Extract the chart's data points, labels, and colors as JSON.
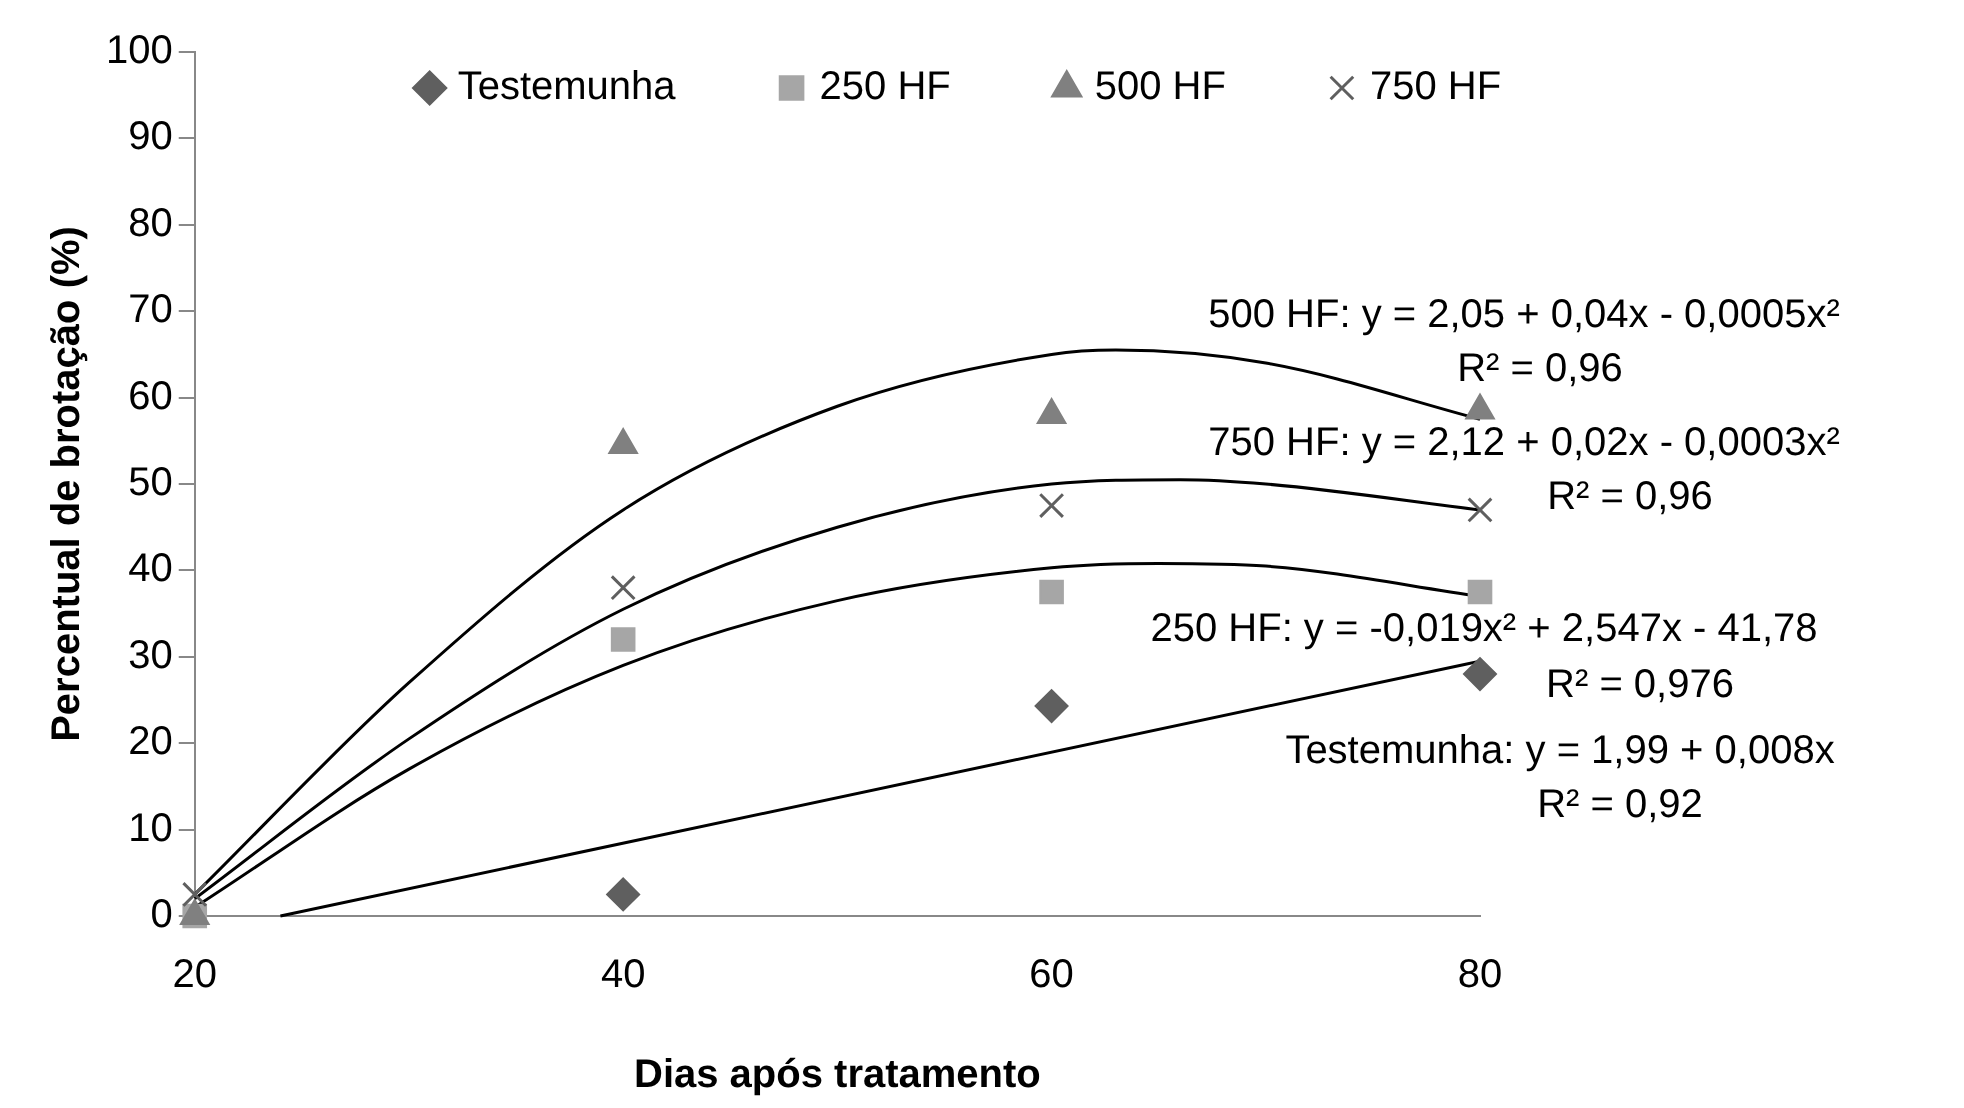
{
  "chart_data": {
    "type": "scatter",
    "xlabel": "Dias após tratamento",
    "ylabel": "Percentual de brotação (%)",
    "x": [
      20,
      40,
      60,
      80
    ],
    "series": [
      {
        "name": "Testemunha",
        "color": "#5f5f5f",
        "marker": "diamond",
        "values": [
          null,
          2.5,
          24.3,
          28
        ]
      },
      {
        "name": "250 HF",
        "color": "#a6a6a6",
        "marker": "square",
        "values": [
          0,
          32,
          37.5,
          37.5
        ]
      },
      {
        "name": "500 HF",
        "color": "#808080",
        "marker": "triangle",
        "values": [
          0,
          54.5,
          58,
          58.5
        ]
      },
      {
        "name": "750 HF",
        "color": "#5f5f5f",
        "marker": "cross",
        "values": [
          2.5,
          38,
          47.5,
          47
        ]
      },
      {
        "type": "line",
        "color": "#000000",
        "marker": "none",
        "x": [
          24,
          80
        ],
        "values": [
          0,
          29.5
        ]
      },
      {
        "type": "line",
        "color": "#000000",
        "marker": "none",
        "x": [
          20,
          30,
          40,
          50,
          60,
          65,
          70,
          80
        ],
        "values": [
          1,
          17,
          29,
          36.5,
          40.3,
          40.8,
          40.5,
          37
        ]
      },
      {
        "type": "line",
        "color": "#000000",
        "marker": "none",
        "x": [
          20,
          30,
          40,
          50,
          60,
          63,
          70,
          80
        ],
        "values": [
          2.5,
          27,
          47,
          59,
          65,
          65.5,
          64,
          57.5
        ]
      },
      {
        "type": "line",
        "color": "#000000",
        "marker": "none",
        "x": [
          20,
          30,
          40,
          50,
          60,
          66,
          70,
          80
        ],
        "values": [
          2,
          20.5,
          35.5,
          45,
          50,
          50.5,
          50,
          47
        ]
      }
    ],
    "xlim": [
      20,
      80
    ],
    "xticks": [
      20,
      40,
      60,
      80
    ],
    "ylim": [
      0,
      100
    ],
    "yticks": [
      0,
      10,
      20,
      30,
      40,
      50,
      60,
      70,
      80,
      90,
      100
    ],
    "grid": false,
    "legend": "top",
    "annotations": [
      "500 HF: y = 2,05 + 0,04x - 0,0005x²\nR² = 0,96",
      "750 HF: y = 2,12 + 0,02x - 0,0003x²\nR² = 0,96",
      "250 HF: y = -0,019x² + 2,547x - 41,78\nR² = 0,976",
      "Testemunha: y = 1,99 + 0,008x\nR² = 0,92"
    ]
  }
}
